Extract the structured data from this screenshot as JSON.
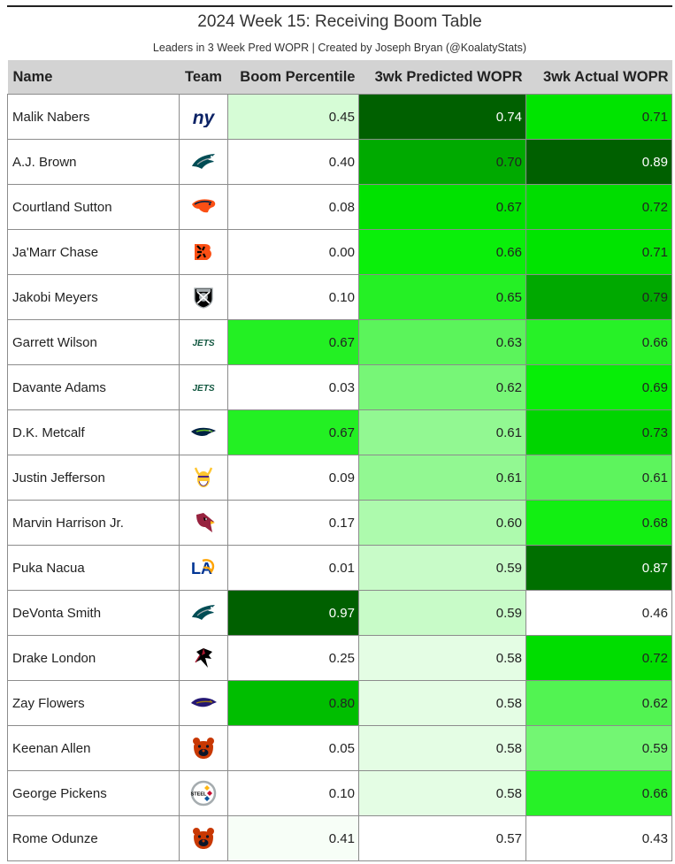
{
  "title": "2024 Week 15: Receiving Boom Table",
  "subtitle": "Leaders in 3 Week Pred WOPR | Created by Joseph Bryan (@KoalatyStats)",
  "columns": {
    "name": "Name",
    "team": "Team",
    "boom": "Boom Percentile",
    "pred": "3wk Predicted WOPR",
    "actual": "3wk Actual WOPR"
  },
  "rows": [
    {
      "name": "Malik Nabers",
      "team_icon": "giants-logo-icon",
      "boom": "0.45",
      "pred": "0.74",
      "actual": "0.71"
    },
    {
      "name": "A.J. Brown",
      "team_icon": "eagles-logo-icon",
      "boom": "0.40",
      "pred": "0.70",
      "actual": "0.89"
    },
    {
      "name": "Courtland Sutton",
      "team_icon": "broncos-logo-icon",
      "boom": "0.08",
      "pred": "0.67",
      "actual": "0.72"
    },
    {
      "name": "Ja'Marr Chase",
      "team_icon": "bengals-logo-icon",
      "boom": "0.00",
      "pred": "0.66",
      "actual": "0.71"
    },
    {
      "name": "Jakobi Meyers",
      "team_icon": "raiders-logo-icon",
      "boom": "0.10",
      "pred": "0.65",
      "actual": "0.79"
    },
    {
      "name": "Garrett Wilson",
      "team_icon": "jets-logo-icon",
      "boom": "0.67",
      "pred": "0.63",
      "actual": "0.66"
    },
    {
      "name": "Davante Adams",
      "team_icon": "jets-logo-icon",
      "boom": "0.03",
      "pred": "0.62",
      "actual": "0.69"
    },
    {
      "name": "D.K. Metcalf",
      "team_icon": "seahawks-logo-icon",
      "boom": "0.67",
      "pred": "0.61",
      "actual": "0.73"
    },
    {
      "name": "Justin Jefferson",
      "team_icon": "vikings-logo-icon",
      "boom": "0.09",
      "pred": "0.61",
      "actual": "0.61"
    },
    {
      "name": "Marvin Harrison Jr.",
      "team_icon": "cardinals-logo-icon",
      "boom": "0.17",
      "pred": "0.60",
      "actual": "0.68"
    },
    {
      "name": "Puka Nacua",
      "team_icon": "rams-logo-icon",
      "boom": "0.01",
      "pred": "0.59",
      "actual": "0.87"
    },
    {
      "name": "DeVonta Smith",
      "team_icon": "eagles-logo-icon",
      "boom": "0.97",
      "pred": "0.59",
      "actual": "0.46"
    },
    {
      "name": "Drake London",
      "team_icon": "falcons-logo-icon",
      "boom": "0.25",
      "pred": "0.58",
      "actual": "0.72"
    },
    {
      "name": "Zay Flowers",
      "team_icon": "ravens-logo-icon",
      "boom": "0.80",
      "pred": "0.58",
      "actual": "0.62"
    },
    {
      "name": "Keenan Allen",
      "team_icon": "bears-logo-icon",
      "boom": "0.05",
      "pred": "0.58",
      "actual": "0.59"
    },
    {
      "name": "George Pickens",
      "team_icon": "steelers-logo-icon",
      "boom": "0.10",
      "pred": "0.58",
      "actual": "0.66"
    },
    {
      "name": "Rome Odunze",
      "team_icon": "bears-logo-icon",
      "boom": "0.41",
      "pred": "0.57",
      "actual": "0.43"
    }
  ]
}
